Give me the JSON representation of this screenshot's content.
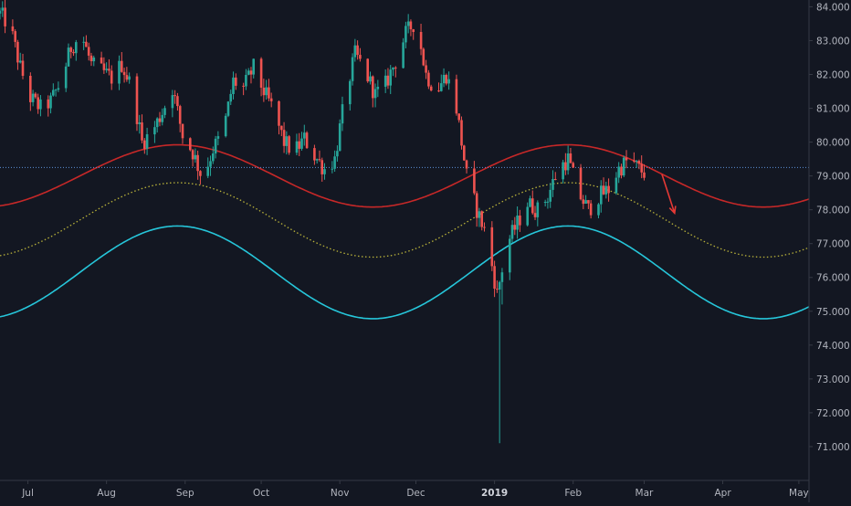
{
  "chart_data": {
    "type": "candlestick",
    "title": "",
    "xlabel": "",
    "ylabel": "",
    "ylim": [
      70.0,
      84.2
    ],
    "x_range": [
      "2018-06-20",
      "2019-05-05"
    ],
    "y_ticks": [
      "71.000",
      "72.000",
      "73.000",
      "74.000",
      "75.000",
      "76.000",
      "77.000",
      "78.000",
      "79.000",
      "80.000",
      "81.000",
      "82.000",
      "83.000",
      "84.000"
    ],
    "x_ticks": [
      {
        "label": "Jul",
        "date": "2018-07-01",
        "bold": false
      },
      {
        "label": "Aug",
        "date": "2018-08-01",
        "bold": false
      },
      {
        "label": "Sep",
        "date": "2018-09-01",
        "bold": false
      },
      {
        "label": "Oct",
        "date": "2018-10-01",
        "bold": false
      },
      {
        "label": "Nov",
        "date": "2018-11-01",
        "bold": false
      },
      {
        "label": "Dec",
        "date": "2018-12-01",
        "bold": false
      },
      {
        "label": "2019",
        "date": "2019-01-01",
        "bold": true
      },
      {
        "label": "Feb",
        "date": "2019-02-01",
        "bold": false
      },
      {
        "label": "Mar",
        "date": "2019-03-01",
        "bold": false
      },
      {
        "label": "Apr",
        "date": "2019-04-01",
        "bold": false
      },
      {
        "label": "May",
        "date": "2019-05-01",
        "bold": false
      }
    ],
    "grid": false,
    "legend": "none",
    "colors": {
      "background": "#131722",
      "up": "#26a69a",
      "down": "#ef5350",
      "upper_band": "#c62828",
      "middle_band": "#b9b23a",
      "lower_band": "#26c6da",
      "reference_line": "#5b8fd6",
      "arrow": "#e53935"
    },
    "reference_line": {
      "value": 79.25
    },
    "series": [
      {
        "kind": "sine",
        "style": "solid",
        "color_key": "upper_band",
        "center": 79.0,
        "amplitude": 0.92,
        "peak": "2018-08-29",
        "period_days": 154
      },
      {
        "kind": "sine",
        "style": "dotted",
        "color_key": "middle_band",
        "center": 77.7,
        "amplitude": 1.1,
        "peak": "2018-08-29",
        "period_days": 154
      },
      {
        "kind": "sine",
        "style": "solid",
        "color_key": "lower_band",
        "center": 76.15,
        "amplitude": 1.37,
        "peak": "2018-08-29",
        "period_days": 154
      }
    ],
    "annotations": [
      {
        "kind": "arrow",
        "from": {
          "date": "2019-03-08",
          "value": 79.05
        },
        "to": {
          "date": "2019-03-13",
          "value": 77.9
        }
      }
    ],
    "candle_anchors": [
      [
        "2018-06-20",
        83.8
      ],
      [
        "2018-06-24",
        83.4
      ],
      [
        "2018-06-28",
        82.2
      ],
      [
        "2018-07-02",
        81.3
      ],
      [
        "2018-07-06",
        81.0
      ],
      [
        "2018-07-10",
        81.2
      ],
      [
        "2018-07-14",
        81.8
      ],
      [
        "2018-07-18",
        82.8
      ],
      [
        "2018-07-22",
        83.2
      ],
      [
        "2018-07-26",
        82.3
      ],
      [
        "2018-07-30",
        82.1
      ],
      [
        "2018-08-03",
        81.9
      ],
      [
        "2018-08-07",
        82.3
      ],
      [
        "2018-08-11",
        81.6
      ],
      [
        "2018-08-15",
        80.0
      ],
      [
        "2018-08-19",
        80.3
      ],
      [
        "2018-08-23",
        80.9
      ],
      [
        "2018-08-27",
        81.6
      ],
      [
        "2018-08-31",
        80.2
      ],
      [
        "2018-09-04",
        79.7
      ],
      [
        "2018-09-08",
        78.9
      ],
      [
        "2018-09-12",
        79.8
      ],
      [
        "2018-09-16",
        80.3
      ],
      [
        "2018-09-20",
        81.8
      ],
      [
        "2018-09-24",
        81.6
      ],
      [
        "2018-09-28",
        82.2
      ],
      [
        "2018-10-02",
        81.5
      ],
      [
        "2018-10-06",
        80.9
      ],
      [
        "2018-10-10",
        80.0
      ],
      [
        "2018-10-14",
        79.7
      ],
      [
        "2018-10-18",
        80.1
      ],
      [
        "2018-10-22",
        79.6
      ],
      [
        "2018-10-26",
        79.2
      ],
      [
        "2018-10-30",
        79.5
      ],
      [
        "2018-11-03",
        81.3
      ],
      [
        "2018-11-07",
        82.6
      ],
      [
        "2018-11-11",
        82.1
      ],
      [
        "2018-11-15",
        81.4
      ],
      [
        "2018-11-19",
        81.7
      ],
      [
        "2018-11-23",
        82.4
      ],
      [
        "2018-11-27",
        83.2
      ],
      [
        "2018-12-01",
        83.6
      ],
      [
        "2018-12-05",
        82.0
      ],
      [
        "2018-12-09",
        81.5
      ],
      [
        "2018-12-13",
        82.0
      ],
      [
        "2018-12-17",
        81.0
      ],
      [
        "2018-12-21",
        79.0
      ],
      [
        "2018-12-25",
        78.0
      ],
      [
        "2018-12-29",
        77.2
      ],
      [
        "2019-01-02",
        75.5
      ],
      [
        "2019-01-06",
        77.0
      ],
      [
        "2019-01-10",
        77.6
      ],
      [
        "2019-01-14",
        78.2
      ],
      [
        "2019-01-18",
        78.0
      ],
      [
        "2019-01-22",
        78.4
      ],
      [
        "2019-01-26",
        79.2
      ],
      [
        "2019-01-30",
        79.5
      ],
      [
        "2019-02-03",
        78.5
      ],
      [
        "2019-02-07",
        78.0
      ],
      [
        "2019-02-11",
        78.4
      ],
      [
        "2019-02-15",
        78.6
      ],
      [
        "2019-02-19",
        79.2
      ],
      [
        "2019-02-23",
        79.5
      ],
      [
        "2019-02-27",
        79.2
      ],
      [
        "2019-03-01",
        79.1
      ]
    ]
  }
}
